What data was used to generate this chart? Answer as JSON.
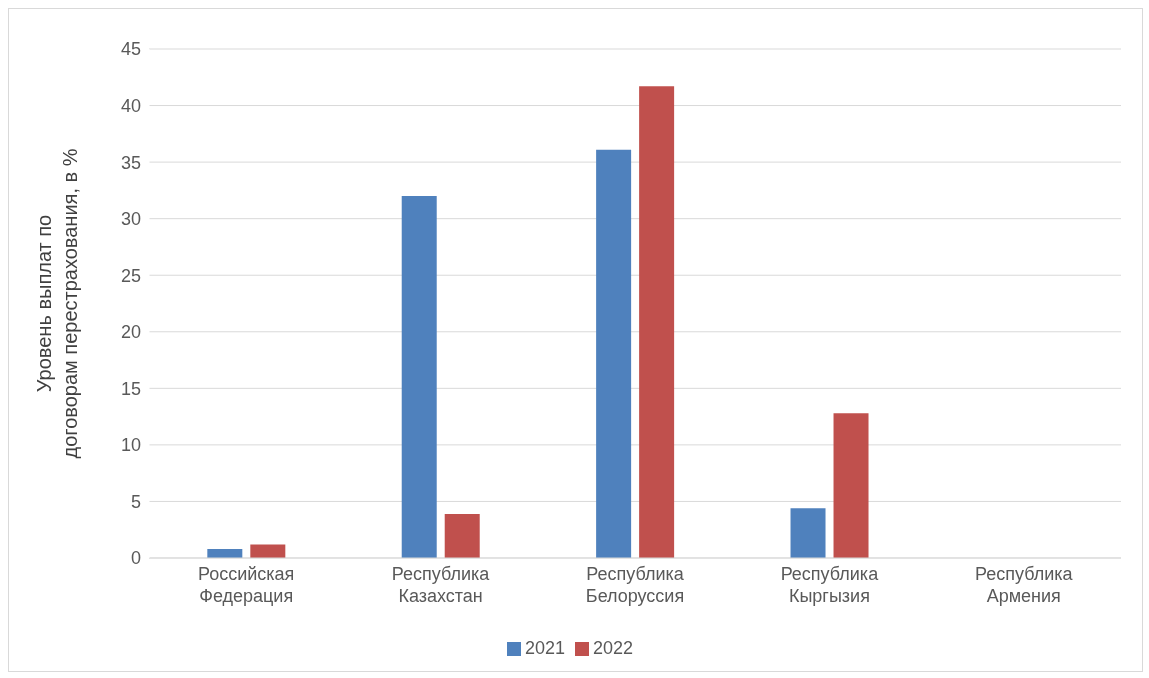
{
  "chart_data": {
    "type": "bar",
    "ylabel": "Уровень выплат по договорам перестрахования, в %",
    "categories": [
      "Российская Федерация",
      "Республика Казахстан",
      "Республика Белоруссия",
      "Республика Кыргызия",
      "Республика Армения"
    ],
    "series": [
      {
        "name": "2021",
        "color": "#4f81bd",
        "values": [
          0.8,
          32,
          36.1,
          4.4,
          0
        ]
      },
      {
        "name": "2022",
        "color": "#c0504d",
        "values": [
          1.2,
          3.9,
          41.7,
          12.8,
          0
        ]
      }
    ],
    "ylim": [
      0,
      45
    ],
    "yticks": [
      0,
      5,
      10,
      15,
      20,
      25,
      30,
      35,
      40,
      45
    ],
    "grid": "y",
    "legend": "bottom"
  }
}
